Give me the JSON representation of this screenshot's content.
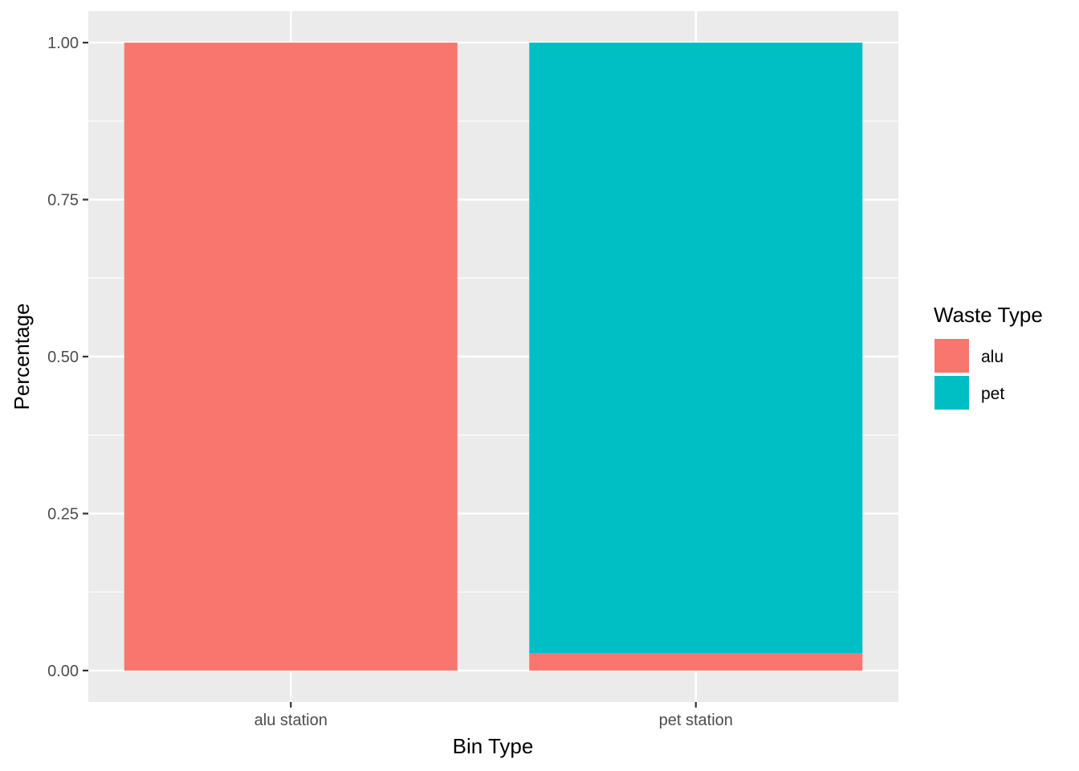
{
  "chart_data": {
    "type": "bar",
    "stacked": true,
    "categories": [
      "alu station",
      "pet station"
    ],
    "series": [
      {
        "name": "alu",
        "color": "#F8766D",
        "values": [
          1.0,
          0.028
        ]
      },
      {
        "name": "pet",
        "color": "#00BFC4",
        "values": [
          0.0,
          0.972
        ]
      }
    ],
    "xlabel": "Bin Type",
    "ylabel": "Percentage",
    "ylim": [
      -0.05,
      1.05
    ],
    "yticks": [
      0.0,
      0.25,
      0.5,
      0.75,
      1.0
    ],
    "ytick_labels": [
      "0.00",
      "0.25",
      "0.50",
      "0.75",
      "1.00"
    ],
    "legend": {
      "title": "Waste Type",
      "position": "right",
      "items": [
        "alu",
        "pet"
      ]
    },
    "grid": true,
    "panel_background": "#EBEBEB"
  }
}
